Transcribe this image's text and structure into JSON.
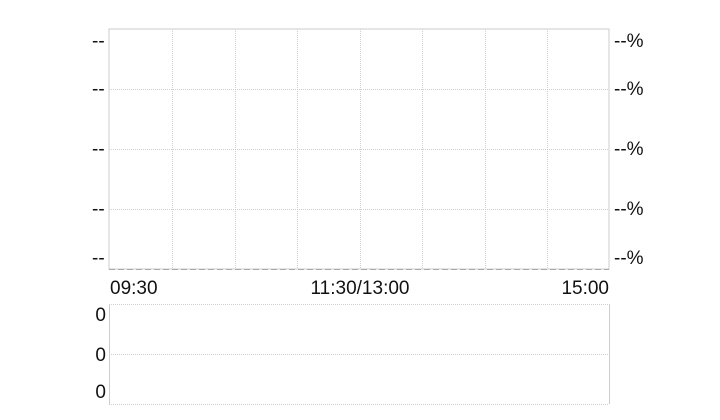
{
  "chart_data": [
    {
      "type": "line",
      "title": "",
      "y_left_tick_labels": [
        "--",
        "--",
        "--",
        "--",
        "--"
      ],
      "y_right_tick_labels": [
        "--%",
        "--%",
        "--%",
        "--%",
        "--%"
      ],
      "x_tick_labels": [
        "09:30",
        "11:30/13:00",
        "15:00"
      ],
      "series": [],
      "grid": true
    },
    {
      "type": "bar",
      "title": "",
      "y_tick_labels": [
        "0",
        "0",
        "0"
      ],
      "series": [],
      "grid": true
    }
  ],
  "colors": {
    "grid": "#d0d0d0",
    "border": "#cccccc",
    "text": "#111111"
  }
}
